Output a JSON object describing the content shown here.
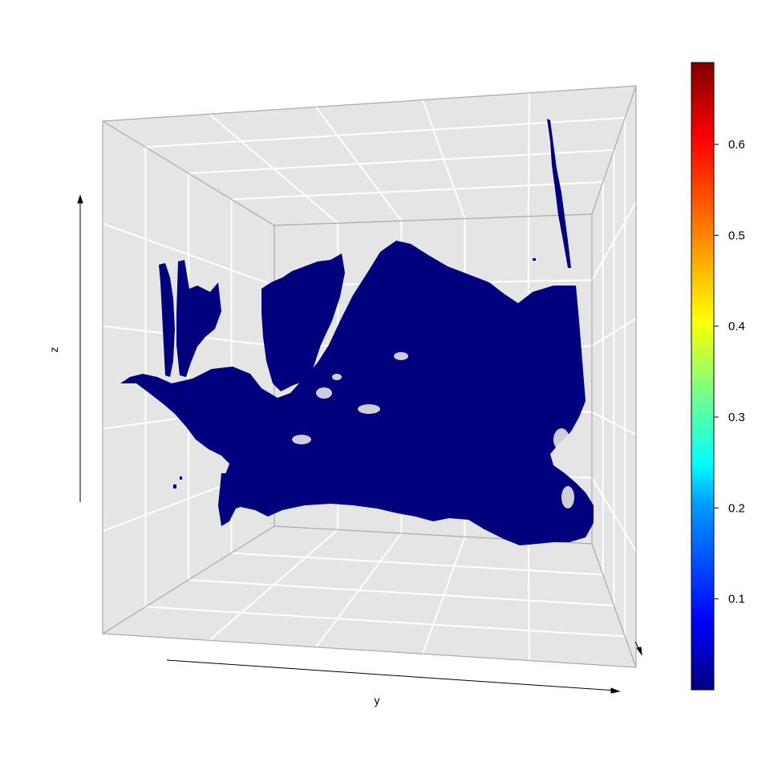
{
  "chart_data": {
    "type": "scatter",
    "title": "",
    "xlabel": "",
    "ylabel": "y",
    "zlabel": "z",
    "grid": true,
    "projection": "3d-perspective",
    "point_color_value": 0.0,
    "colorbar": {
      "colormap": "jet",
      "range": [
        0,
        0.69
      ],
      "ticks": [
        0.1,
        0.2,
        0.3,
        0.4,
        0.5,
        0.6
      ],
      "tick_labels": [
        "0.1",
        "0.2",
        "0.3",
        "0.4",
        "0.5",
        "0.6"
      ],
      "placement": "right"
    }
  }
}
